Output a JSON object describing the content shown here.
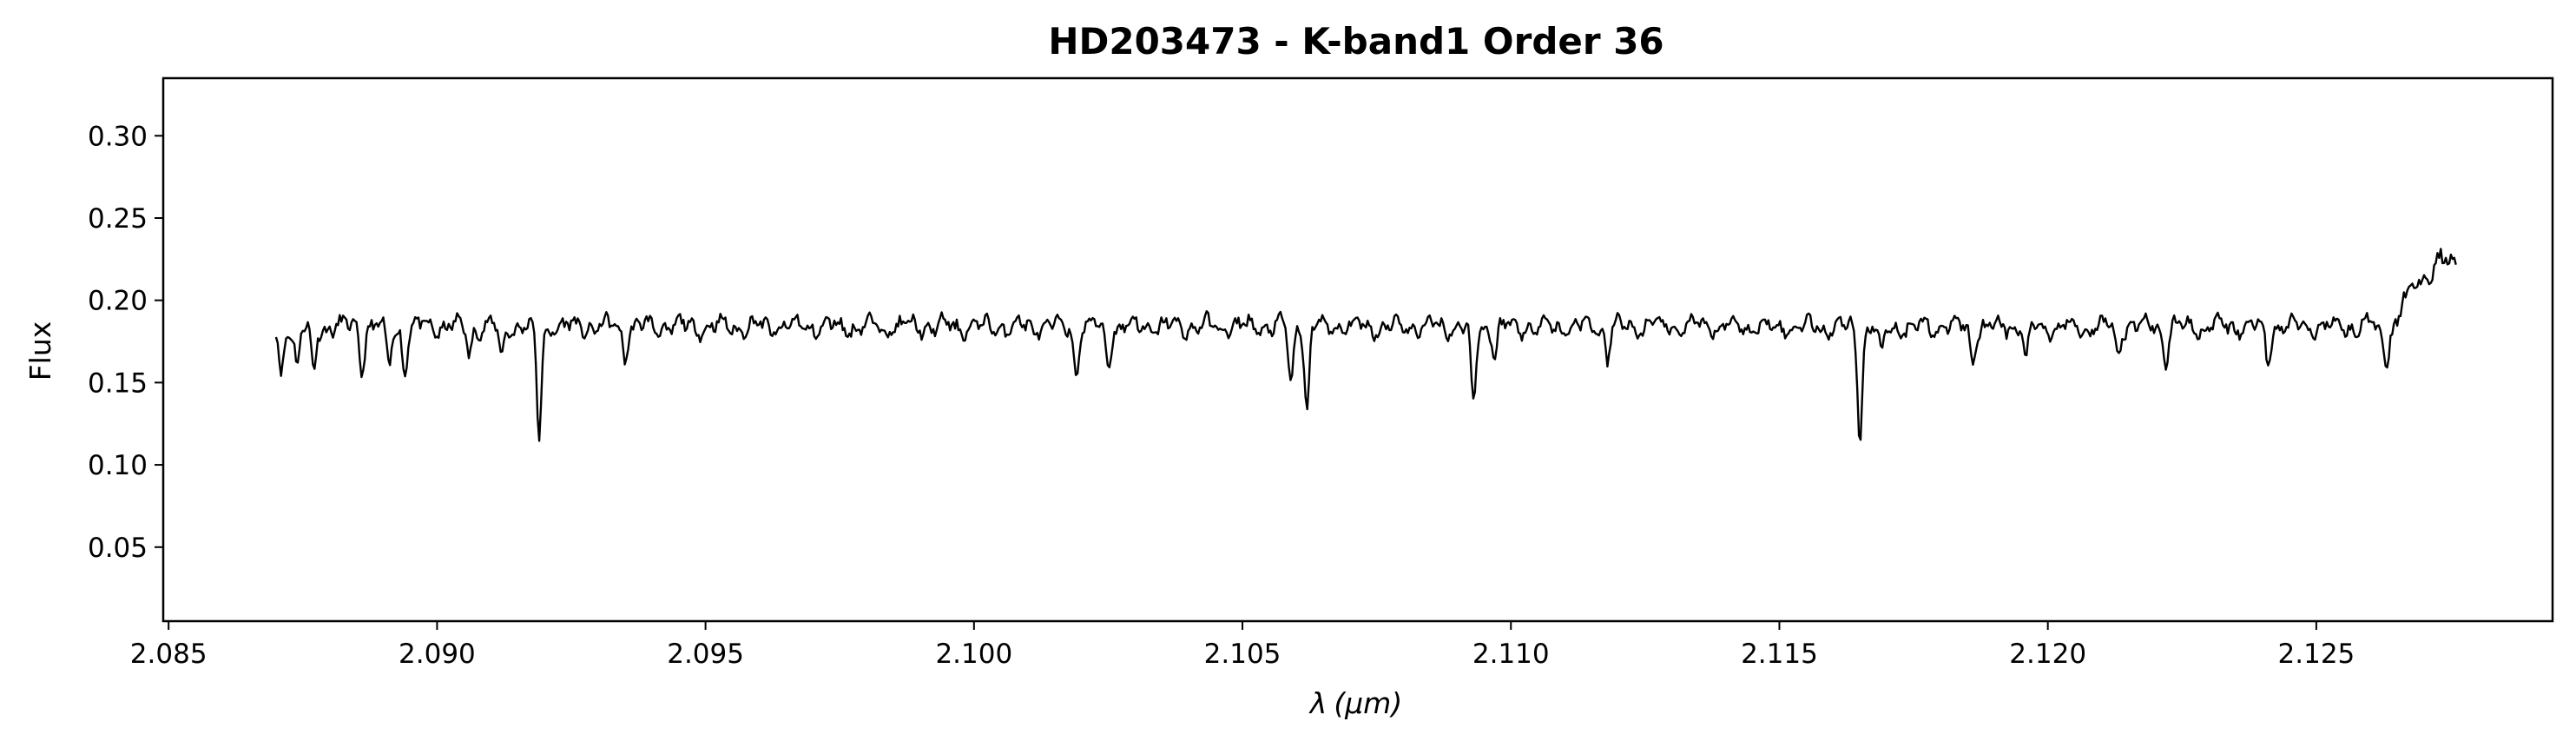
{
  "chart_data": {
    "type": "line",
    "title": "HD203473 - K-band1 Order 36",
    "xlabel_symbol": "λ",
    "xlabel_unit": "(μm)",
    "ylabel": "Flux",
    "xlim": [
      2.0849,
      2.1294
    ],
    "ylim": [
      0.005,
      0.335
    ],
    "xticks": [
      2.085,
      2.09,
      2.095,
      2.1,
      2.105,
      2.11,
      2.115,
      2.12,
      2.125
    ],
    "xtick_labels": [
      "2.085",
      "2.090",
      "2.095",
      "2.100",
      "2.105",
      "2.110",
      "2.115",
      "2.120",
      "2.125"
    ],
    "yticks": [
      0.05,
      0.1,
      0.15,
      0.2,
      0.25,
      0.3
    ],
    "ytick_labels": [
      "0.05",
      "0.10",
      "0.15",
      "0.20",
      "0.25",
      "0.30"
    ],
    "grid": false,
    "legend": "none",
    "line_color": "#000000",
    "series": [
      {
        "x_start": 2.087,
        "x_end": 2.1276,
        "baseline": 0.184,
        "absorption_lines": [
          [
            2.0871,
            0.155
          ],
          [
            2.0874,
            0.16
          ],
          [
            2.0877,
            0.155
          ],
          [
            2.0886,
            0.16
          ],
          [
            2.0891,
            0.158
          ],
          [
            2.0894,
            0.158
          ],
          [
            2.0906,
            0.168
          ],
          [
            2.0912,
            0.165
          ],
          [
            2.0919,
            0.118
          ],
          [
            2.0935,
            0.168
          ],
          [
            2.1019,
            0.155
          ],
          [
            2.1025,
            0.162
          ],
          [
            2.1059,
            0.15
          ],
          [
            2.1062,
            0.135
          ],
          [
            2.1093,
            0.135
          ],
          [
            2.1097,
            0.168
          ],
          [
            2.1118,
            0.165
          ],
          [
            2.1165,
            0.12
          ],
          [
            2.1169,
            0.165
          ],
          [
            2.1186,
            0.165
          ],
          [
            2.1196,
            0.163
          ],
          [
            2.1213,
            0.165
          ],
          [
            2.1222,
            0.165
          ],
          [
            2.1241,
            0.163
          ],
          [
            2.1263,
            0.162
          ]
        ],
        "rise_start": 2.1265,
        "end_value": 0.222
      }
    ]
  }
}
